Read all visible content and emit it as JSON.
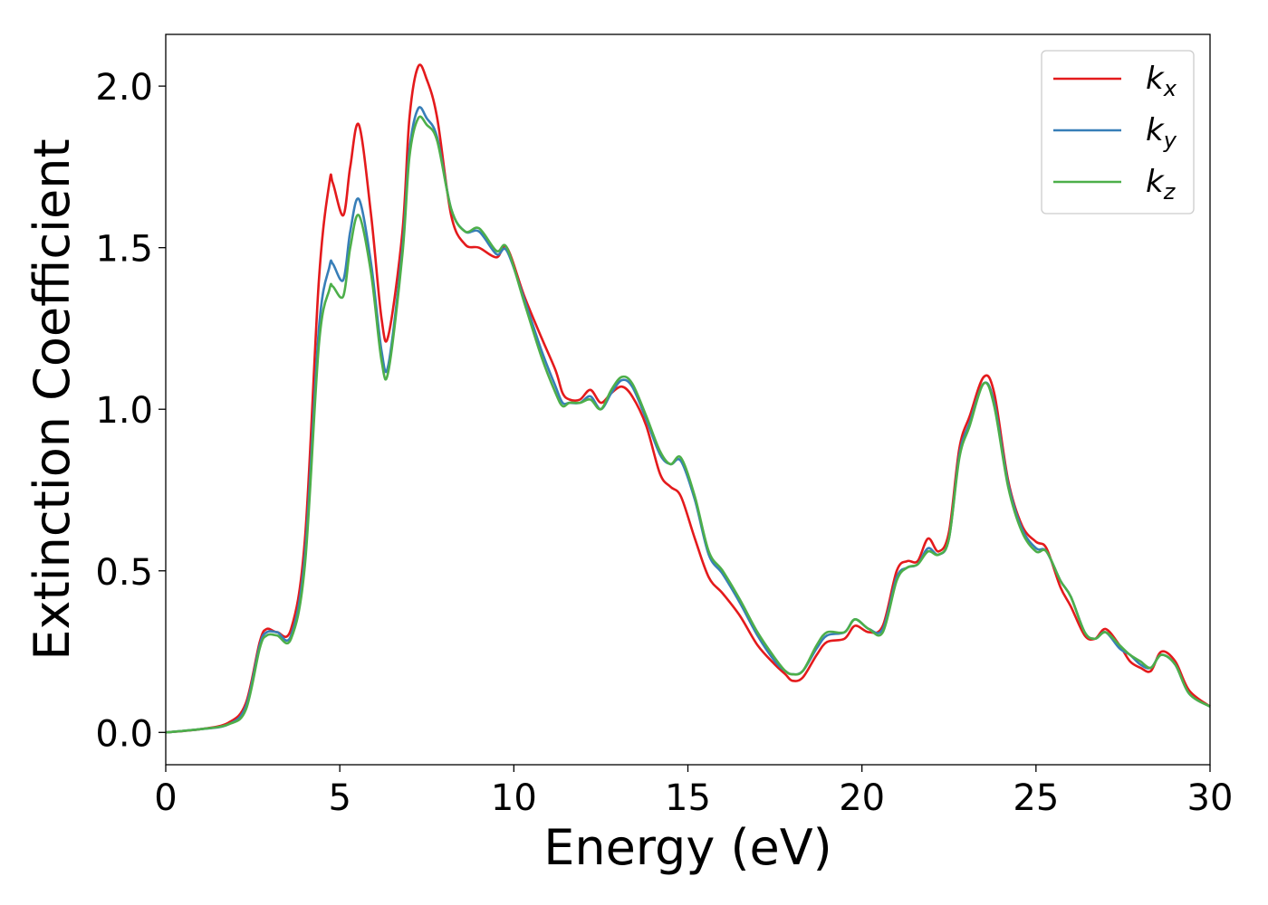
{
  "chart_data": {
    "type": "line",
    "xlabel": "Energy (eV)",
    "ylabel": "Extinction Coefficient",
    "xlim": [
      0,
      30
    ],
    "ylim": [
      -0.1,
      2.16
    ],
    "x_ticks": [
      "0",
      "5",
      "10",
      "15",
      "20",
      "25",
      "30"
    ],
    "y_ticks": [
      "0.0",
      "0.5",
      "1.0",
      "1.5",
      "2.0"
    ],
    "grid": false,
    "legend_placement": "top-right",
    "series": [
      {
        "name": "kx",
        "symbol": "k",
        "subscript": "x",
        "color": "#e41a1c",
        "x": [
          0,
          1,
          1.8,
          2.3,
          2.7,
          2.9,
          3.2,
          3.6,
          4.0,
          4.4,
          4.7,
          4.8,
          5.1,
          5.3,
          5.55,
          5.9,
          6.2,
          6.4,
          6.8,
          7.0,
          7.25,
          7.5,
          7.8,
          8.2,
          8.6,
          9.0,
          9.5,
          9.8,
          10.3,
          10.8,
          11.2,
          11.4,
          11.6,
          11.9,
          12.2,
          12.5,
          12.8,
          13.1,
          13.4,
          13.8,
          14.2,
          14.5,
          14.8,
          15.2,
          15.6,
          16.0,
          16.5,
          17.0,
          17.5,
          17.8,
          18.0,
          18.3,
          18.7,
          19.0,
          19.5,
          19.8,
          20.2,
          20.6,
          21.0,
          21.3,
          21.6,
          21.9,
          22.2,
          22.5,
          22.8,
          23.1,
          23.5,
          23.8,
          24.2,
          24.6,
          25.0,
          25.3,
          25.7,
          26.0,
          26.4,
          26.7,
          27.0,
          27.4,
          27.7,
          28.0,
          28.3,
          28.6,
          29.0,
          29.4,
          30.0
        ],
        "y": [
          0.0,
          0.01,
          0.03,
          0.09,
          0.28,
          0.32,
          0.31,
          0.32,
          0.6,
          1.4,
          1.7,
          1.7,
          1.6,
          1.75,
          1.88,
          1.6,
          1.28,
          1.23,
          1.55,
          1.9,
          2.06,
          2.02,
          1.9,
          1.6,
          1.51,
          1.5,
          1.47,
          1.5,
          1.35,
          1.22,
          1.12,
          1.05,
          1.03,
          1.03,
          1.06,
          1.02,
          1.05,
          1.07,
          1.04,
          0.95,
          0.8,
          0.76,
          0.73,
          0.6,
          0.48,
          0.43,
          0.36,
          0.27,
          0.21,
          0.18,
          0.16,
          0.17,
          0.24,
          0.28,
          0.29,
          0.33,
          0.31,
          0.33,
          0.5,
          0.53,
          0.53,
          0.6,
          0.56,
          0.62,
          0.88,
          0.98,
          1.1,
          1.05,
          0.78,
          0.64,
          0.59,
          0.57,
          0.45,
          0.39,
          0.3,
          0.29,
          0.32,
          0.27,
          0.22,
          0.2,
          0.19,
          0.25,
          0.22,
          0.13,
          0.08
        ]
      },
      {
        "name": "ky",
        "symbol": "k",
        "subscript": "y",
        "color": "#377eb8",
        "x": [
          0,
          1,
          1.8,
          2.3,
          2.7,
          2.9,
          3.2,
          3.6,
          4.0,
          4.4,
          4.7,
          4.8,
          5.1,
          5.3,
          5.55,
          5.9,
          6.2,
          6.4,
          6.8,
          7.0,
          7.25,
          7.5,
          7.8,
          8.2,
          8.6,
          9.0,
          9.5,
          9.8,
          10.3,
          10.8,
          11.2,
          11.4,
          11.6,
          11.9,
          12.2,
          12.5,
          12.8,
          13.1,
          13.4,
          13.8,
          14.2,
          14.5,
          14.8,
          15.2,
          15.6,
          16.0,
          16.5,
          17.0,
          17.5,
          17.8,
          18.0,
          18.3,
          18.7,
          19.0,
          19.5,
          19.8,
          20.2,
          20.6,
          21.0,
          21.3,
          21.6,
          21.9,
          22.2,
          22.5,
          22.8,
          23.1,
          23.5,
          23.8,
          24.2,
          24.6,
          25.0,
          25.3,
          25.7,
          26.0,
          26.4,
          26.7,
          27.0,
          27.4,
          27.7,
          28.0,
          28.3,
          28.6,
          29.0,
          29.4,
          30.0
        ],
        "y": [
          0.0,
          0.01,
          0.025,
          0.08,
          0.27,
          0.31,
          0.31,
          0.3,
          0.55,
          1.25,
          1.44,
          1.45,
          1.4,
          1.55,
          1.65,
          1.45,
          1.18,
          1.14,
          1.5,
          1.8,
          1.93,
          1.9,
          1.84,
          1.62,
          1.55,
          1.55,
          1.48,
          1.49,
          1.34,
          1.18,
          1.07,
          1.02,
          1.02,
          1.02,
          1.04,
          1.0,
          1.05,
          1.09,
          1.07,
          0.97,
          0.86,
          0.83,
          0.84,
          0.72,
          0.55,
          0.49,
          0.4,
          0.3,
          0.22,
          0.19,
          0.18,
          0.19,
          0.26,
          0.3,
          0.31,
          0.35,
          0.32,
          0.32,
          0.48,
          0.51,
          0.52,
          0.57,
          0.55,
          0.6,
          0.86,
          0.96,
          1.08,
          1.02,
          0.77,
          0.63,
          0.57,
          0.56,
          0.47,
          0.42,
          0.31,
          0.29,
          0.31,
          0.26,
          0.24,
          0.21,
          0.2,
          0.24,
          0.21,
          0.12,
          0.08
        ]
      },
      {
        "name": "kz",
        "symbol": "k",
        "subscript": "z",
        "color": "#4daf4a",
        "x": [
          0,
          1,
          1.8,
          2.3,
          2.7,
          2.9,
          3.2,
          3.6,
          4.0,
          4.4,
          4.7,
          4.8,
          5.1,
          5.3,
          5.55,
          5.9,
          6.2,
          6.4,
          6.8,
          7.0,
          7.25,
          7.5,
          7.8,
          8.2,
          8.6,
          9.0,
          9.5,
          9.8,
          10.3,
          10.8,
          11.2,
          11.4,
          11.6,
          11.9,
          12.2,
          12.5,
          12.8,
          13.1,
          13.4,
          13.8,
          14.2,
          14.5,
          14.8,
          15.2,
          15.6,
          16.0,
          16.5,
          17.0,
          17.5,
          17.8,
          18.0,
          18.3,
          18.7,
          19.0,
          19.5,
          19.8,
          20.2,
          20.6,
          21.0,
          21.3,
          21.6,
          21.9,
          22.2,
          22.5,
          22.8,
          23.1,
          23.5,
          23.8,
          24.2,
          24.6,
          25.0,
          25.3,
          25.7,
          26.0,
          26.4,
          26.7,
          27.0,
          27.4,
          27.7,
          28.0,
          28.3,
          28.6,
          29.0,
          29.4,
          30.0
        ],
        "y": [
          0.0,
          0.01,
          0.025,
          0.07,
          0.26,
          0.3,
          0.3,
          0.29,
          0.52,
          1.2,
          1.37,
          1.38,
          1.35,
          1.5,
          1.6,
          1.42,
          1.15,
          1.12,
          1.48,
          1.78,
          1.9,
          1.88,
          1.83,
          1.62,
          1.55,
          1.56,
          1.49,
          1.5,
          1.33,
          1.16,
          1.05,
          1.01,
          1.02,
          1.02,
          1.03,
          1.0,
          1.06,
          1.1,
          1.08,
          0.98,
          0.87,
          0.83,
          0.85,
          0.73,
          0.56,
          0.5,
          0.41,
          0.31,
          0.23,
          0.19,
          0.18,
          0.19,
          0.27,
          0.31,
          0.31,
          0.35,
          0.32,
          0.31,
          0.47,
          0.51,
          0.52,
          0.56,
          0.55,
          0.6,
          0.85,
          0.95,
          1.08,
          1.01,
          0.76,
          0.62,
          0.56,
          0.56,
          0.47,
          0.42,
          0.31,
          0.29,
          0.31,
          0.27,
          0.24,
          0.22,
          0.2,
          0.24,
          0.21,
          0.12,
          0.08
        ]
      }
    ]
  }
}
